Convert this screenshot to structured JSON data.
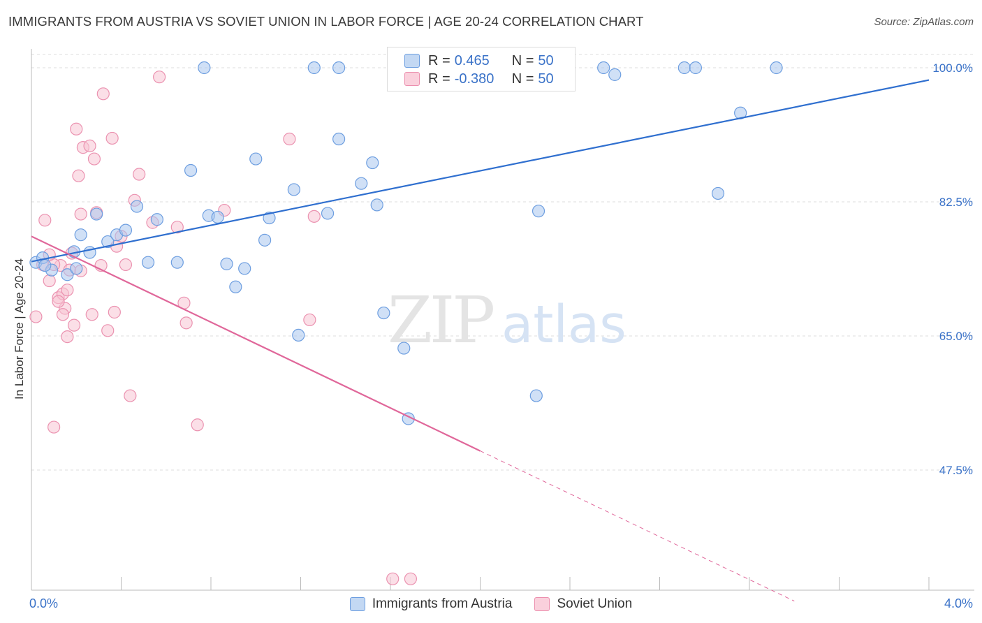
{
  "title": "IMMIGRANTS FROM AUSTRIA VS SOVIET UNION IN LABOR FORCE | AGE 20-24 CORRELATION CHART",
  "source": "Source: ZipAtlas.com",
  "watermark": {
    "zip": "ZIP",
    "atlas": "atlas"
  },
  "legend_stats": [
    {
      "r_label": "R =",
      "r_value": "0.465",
      "n_label": "N =",
      "n_value": "50",
      "color": "#a9c6ee",
      "border": "#6d9ee0"
    },
    {
      "r_label": "R =",
      "r_value": "-0.380",
      "n_label": "N =",
      "n_value": "50",
      "color": "#f7bfd0",
      "border": "#ec8fae"
    }
  ],
  "colors": {
    "blue_fill": "#a9c6ee",
    "blue_stroke": "#6d9ee0",
    "blue_line": "#2f6fcf",
    "pink_fill": "#f7c4d3",
    "pink_stroke": "#eb92b0",
    "pink_line": "#e0679a",
    "tick_label": "#3a72c8",
    "grid": "#dddddd"
  },
  "chart_data": {
    "type": "scatter",
    "title": "IMMIGRANTS FROM AUSTRIA VS SOVIET UNION IN LABOR FORCE | AGE 20-24 CORRELATION CHART",
    "xlabel": "",
    "ylabel": "In Labor Force | Age 20-24",
    "xlim": [
      0,
      4.0
    ],
    "ylim": [
      30,
      102
    ],
    "x_tick_labels": [
      {
        "value": 0.0,
        "label": "0.0%"
      },
      {
        "value": 4.0,
        "label": "4.0%"
      }
    ],
    "y_tick_labels": [
      {
        "value": 100.0,
        "label": "100.0%"
      },
      {
        "value": 82.5,
        "label": "82.5%"
      },
      {
        "value": 65.0,
        "label": "65.0%"
      },
      {
        "value": 47.5,
        "label": "47.5%"
      }
    ],
    "grid": true,
    "legend_position": "bottom",
    "series": [
      {
        "name": "Immigrants from Austria",
        "points": [
          [
            0.02,
            74.6
          ],
          [
            0.05,
            75.2
          ],
          [
            0.09,
            73.6
          ],
          [
            0.16,
            73.0
          ],
          [
            0.19,
            76.0
          ],
          [
            0.22,
            78.2
          ],
          [
            0.26,
            75.9
          ],
          [
            0.29,
            80.9
          ],
          [
            0.34,
            77.3
          ],
          [
            0.38,
            78.2
          ],
          [
            0.42,
            78.8
          ],
          [
            0.47,
            81.9
          ],
          [
            0.52,
            74.6
          ],
          [
            0.56,
            80.2
          ],
          [
            0.65,
            74.6
          ],
          [
            0.71,
            86.6
          ],
          [
            0.77,
            100.0
          ],
          [
            0.79,
            80.7
          ],
          [
            0.83,
            80.5
          ],
          [
            0.87,
            74.4
          ],
          [
            0.91,
            71.4
          ],
          [
            0.95,
            73.8
          ],
          [
            1.0,
            88.1
          ],
          [
            1.04,
            77.5
          ],
          [
            1.06,
            80.4
          ],
          [
            1.17,
            84.1
          ],
          [
            1.19,
            65.1
          ],
          [
            1.26,
            100.0
          ],
          [
            1.32,
            81.0
          ],
          [
            1.37,
            90.7
          ],
          [
            1.37,
            100.0
          ],
          [
            1.47,
            84.9
          ],
          [
            1.52,
            87.6
          ],
          [
            1.54,
            82.1
          ],
          [
            1.57,
            68.0
          ],
          [
            1.66,
            63.4
          ],
          [
            1.68,
            54.2
          ],
          [
            1.97,
            100.0
          ],
          [
            2.0,
            100.0
          ],
          [
            2.25,
            57.2
          ],
          [
            2.26,
            81.3
          ],
          [
            2.55,
            100.0
          ],
          [
            2.6,
            99.1
          ],
          [
            2.91,
            100.0
          ],
          [
            2.96,
            100.0
          ],
          [
            3.06,
            83.6
          ],
          [
            3.16,
            94.1
          ],
          [
            3.32,
            100.0
          ],
          [
            0.06,
            74.2
          ],
          [
            0.2,
            73.8
          ]
        ]
      },
      {
        "name": "Soviet Union",
        "points": [
          [
            0.02,
            67.5
          ],
          [
            0.05,
            74.3
          ],
          [
            0.06,
            80.1
          ],
          [
            0.08,
            72.2
          ],
          [
            0.1,
            53.1
          ],
          [
            0.12,
            70.0
          ],
          [
            0.13,
            74.2
          ],
          [
            0.14,
            70.5
          ],
          [
            0.15,
            68.6
          ],
          [
            0.16,
            64.9
          ],
          [
            0.17,
            73.6
          ],
          [
            0.19,
            66.4
          ],
          [
            0.2,
            92.0
          ],
          [
            0.21,
            85.9
          ],
          [
            0.22,
            80.9
          ],
          [
            0.23,
            89.6
          ],
          [
            0.26,
            89.8
          ],
          [
            0.27,
            67.8
          ],
          [
            0.28,
            88.1
          ],
          [
            0.29,
            81.1
          ],
          [
            0.31,
            74.2
          ],
          [
            0.32,
            96.6
          ],
          [
            0.34,
            65.7
          ],
          [
            0.36,
            90.8
          ],
          [
            0.37,
            68.1
          ],
          [
            0.38,
            76.7
          ],
          [
            0.4,
            78.0
          ],
          [
            0.42,
            74.3
          ],
          [
            0.44,
            57.2
          ],
          [
            0.46,
            82.7
          ],
          [
            0.48,
            86.1
          ],
          [
            0.54,
            79.8
          ],
          [
            0.57,
            98.8
          ],
          [
            0.65,
            79.2
          ],
          [
            0.68,
            69.3
          ],
          [
            0.69,
            66.7
          ],
          [
            0.74,
            53.4
          ],
          [
            0.86,
            81.4
          ],
          [
            1.15,
            90.7
          ],
          [
            1.24,
            67.1
          ],
          [
            1.26,
            80.6
          ],
          [
            1.61,
            33.3
          ],
          [
            1.69,
            33.3
          ],
          [
            0.1,
            74.3
          ],
          [
            0.14,
            67.8
          ],
          [
            0.18,
            75.8
          ],
          [
            0.22,
            73.5
          ],
          [
            0.12,
            69.5
          ],
          [
            0.08,
            75.6
          ],
          [
            0.16,
            71.0
          ]
        ]
      }
    ],
    "trendlines": [
      {
        "series": "Immigrants from Austria",
        "x": [
          0.0,
          4.0
        ],
        "y": [
          74.7,
          98.4
        ],
        "style": "solid"
      },
      {
        "series": "Soviet Union",
        "x": [
          0.0,
          2.0
        ],
        "y": [
          78.0,
          50.0
        ],
        "style": "solid"
      },
      {
        "series": "Soviet Union",
        "x": [
          2.0,
          3.4
        ],
        "y": [
          50.0,
          30.4
        ],
        "style": "dashed"
      }
    ]
  }
}
